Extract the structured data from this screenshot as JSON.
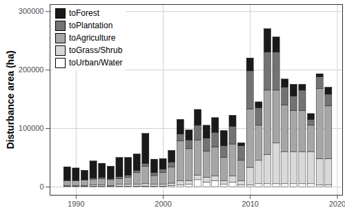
{
  "chart_data": {
    "type": "bar",
    "stacked": true,
    "ylabel": "Disturbance area (ha)",
    "x": [
      1989,
      1990,
      1991,
      1992,
      1993,
      1994,
      1995,
      1996,
      1997,
      1998,
      1999,
      2000,
      2001,
      2002,
      2003,
      2004,
      2005,
      2006,
      2007,
      2008,
      2009,
      2010,
      2011,
      2012,
      2013,
      2014,
      2015,
      2016,
      2017,
      2018,
      2019
    ],
    "series": [
      {
        "name": "toForest",
        "color": "#1a1a1a",
        "values": [
          23000,
          21000,
          16000,
          29000,
          24000,
          21000,
          33000,
          30000,
          28000,
          51000,
          23000,
          18000,
          20000,
          25000,
          17000,
          27000,
          22000,
          25000,
          26000,
          19000,
          5000,
          22000,
          10000,
          40000,
          26000,
          14000,
          20000,
          10000,
          10000,
          5000,
          12000
        ]
      },
      {
        "name": "toPlantation",
        "color": "#737373",
        "values": [
          1000,
          1000,
          1000,
          2000,
          2000,
          2000,
          3000,
          4000,
          4000,
          5000,
          5000,
          6000,
          8000,
          12000,
          15000,
          25000,
          22000,
          25000,
          20000,
          30000,
          25000,
          65000,
          30000,
          65000,
          65000,
          30000,
          25000,
          35000,
          10000,
          20000,
          20000
        ]
      },
      {
        "name": "toAgriculture",
        "color": "#a6a6a6",
        "values": [
          8000,
          8000,
          9000,
          10000,
          11000,
          10000,
          10000,
          12000,
          20000,
          30000,
          15000,
          20000,
          28000,
          68000,
          55000,
          60000,
          45000,
          50000,
          40000,
          55000,
          35000,
          100000,
          60000,
          110000,
          90000,
          80000,
          70000,
          70000,
          45000,
          120000,
          90000
        ]
      },
      {
        "name": "toGrass/Shrub",
        "color": "#d9d9d9",
        "values": [
          1000,
          1000,
          1000,
          2000,
          2000,
          1000,
          3000,
          3000,
          3000,
          4000,
          3000,
          3000,
          4000,
          7000,
          6000,
          8000,
          8000,
          8000,
          6000,
          10000,
          7000,
          30000,
          40000,
          50000,
          70000,
          55000,
          55000,
          55000,
          55000,
          45000,
          45000
        ]
      },
      {
        "name": "toUrban/Water",
        "color": "#ffffff",
        "values": [
          1000,
          1000,
          1000,
          1000,
          1000,
          1000,
          1000,
          1000,
          1000,
          1000,
          1000,
          1000,
          2000,
          3000,
          4000,
          12000,
          8000,
          10000,
          4000,
          8000,
          3000,
          3000,
          5000,
          5000,
          5000,
          5000,
          5000,
          5000,
          5000,
          3000,
          3000
        ]
      }
    ],
    "xlim": [
      1987,
      2020.6
    ],
    "xticks": [
      1990,
      2000,
      2010,
      2020
    ],
    "ylim": [
      -14000,
      312000
    ],
    "yticks": [
      0,
      100000,
      200000,
      300000
    ],
    "grid": true,
    "legend": "top-left"
  }
}
